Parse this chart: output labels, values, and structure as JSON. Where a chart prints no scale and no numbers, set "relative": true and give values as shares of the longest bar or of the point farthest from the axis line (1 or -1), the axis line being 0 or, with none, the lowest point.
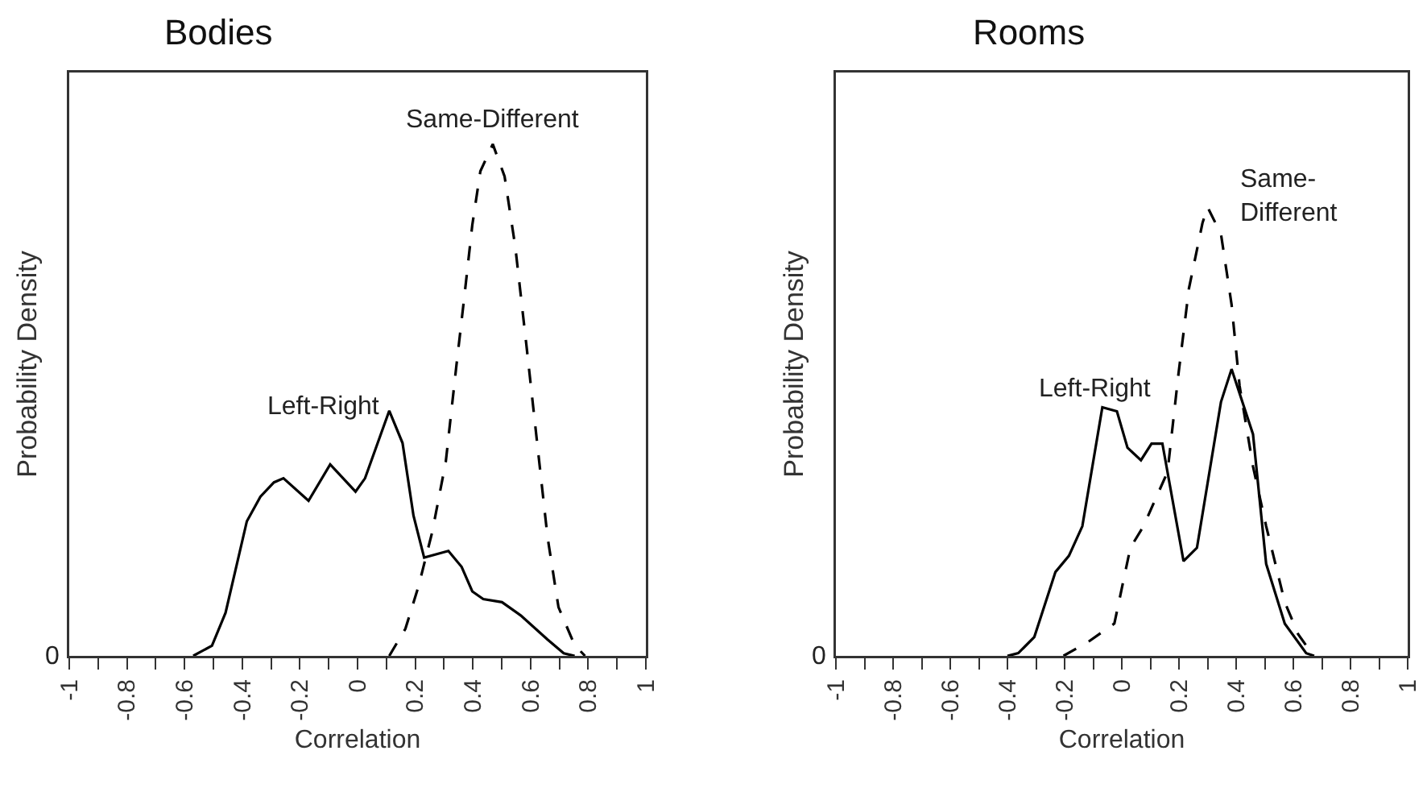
{
  "chart_data": [
    {
      "type": "line",
      "title": "Bodies",
      "xlabel": "Correlation",
      "ylabel": "Probability Density",
      "relative": true,
      "grid": false,
      "legend": false,
      "marker": "none",
      "xlim": [
        -1,
        1
      ],
      "xticks": [
        {
          "value": -1,
          "label": "-1"
        },
        {
          "value": -0.9,
          "label": null
        },
        {
          "value": -0.8,
          "label": "-0.8"
        },
        {
          "value": -0.7,
          "label": null
        },
        {
          "value": -0.6,
          "label": "-0.6"
        },
        {
          "value": -0.5,
          "label": null
        },
        {
          "value": -0.4,
          "label": "-0.4"
        },
        {
          "value": -0.3,
          "label": null
        },
        {
          "value": -0.2,
          "label": "-0.2"
        },
        {
          "value": -0.1,
          "label": null
        },
        {
          "value": 0,
          "label": "0"
        },
        {
          "value": 0.1,
          "label": null
        },
        {
          "value": 0.2,
          "label": "0.2"
        },
        {
          "value": 0.3,
          "label": null
        },
        {
          "value": 0.4,
          "label": "0.4"
        },
        {
          "value": 0.5,
          "label": null
        },
        {
          "value": 0.6,
          "label": "0.6"
        },
        {
          "value": 0.7,
          "label": null
        },
        {
          "value": 0.8,
          "label": "0.8"
        },
        {
          "value": 0.9,
          "label": null
        },
        {
          "value": 1,
          "label": "1"
        }
      ],
      "annotations": [
        "0"
      ],
      "series": [
        {
          "name": "Left-Right",
          "color": "#000000",
          "line_style": "solid",
          "x": [
            -0.57,
            -0.505,
            -0.458,
            -0.384,
            -0.337,
            -0.29,
            -0.257,
            -0.17,
            -0.095,
            -0.007,
            0.026,
            0.11,
            0.156,
            0.194,
            0.231,
            0.315,
            0.361,
            0.398,
            0.436,
            0.501,
            0.566,
            0.659,
            0.715,
            0.753
          ],
          "values": [
            0,
            0.02,
            0.084,
            0.263,
            0.311,
            0.339,
            0.347,
            0.303,
            0.374,
            0.321,
            0.347,
            0.479,
            0.416,
            0.274,
            0.192,
            0.205,
            0.174,
            0.126,
            0.111,
            0.105,
            0.079,
            0.032,
            0.005,
            0
          ]
        },
        {
          "name": "Same-Different",
          "color": "#000000",
          "line_style": "dashed",
          "x": [
            0.11,
            0.166,
            0.212,
            0.259,
            0.306,
            0.343,
            0.371,
            0.398,
            0.426,
            0.469,
            0.51,
            0.547,
            0.585,
            0.622,
            0.659,
            0.697,
            0.753,
            0.789
          ],
          "values": [
            0,
            0.053,
            0.137,
            0.242,
            0.379,
            0.568,
            0.705,
            0.842,
            0.947,
            1,
            0.937,
            0.8,
            0.611,
            0.421,
            0.232,
            0.095,
            0.021,
            0
          ]
        }
      ]
    },
    {
      "type": "line",
      "title": "Rooms",
      "xlabel": "Correlation",
      "ylabel": "Probability Density",
      "relative": true,
      "grid": false,
      "legend": false,
      "marker": "none",
      "xlim": [
        -1,
        1
      ],
      "xticks": [
        {
          "value": -1,
          "label": "-1"
        },
        {
          "value": -0.9,
          "label": null
        },
        {
          "value": -0.8,
          "label": "-0.8"
        },
        {
          "value": -0.7,
          "label": null
        },
        {
          "value": -0.6,
          "label": "-0.6"
        },
        {
          "value": -0.5,
          "label": null
        },
        {
          "value": -0.4,
          "label": "-0.4"
        },
        {
          "value": -0.3,
          "label": null
        },
        {
          "value": -0.2,
          "label": "-0.2"
        },
        {
          "value": -0.1,
          "label": null
        },
        {
          "value": 0,
          "label": "0"
        },
        {
          "value": 0.1,
          "label": null
        },
        {
          "value": 0.2,
          "label": "0.2"
        },
        {
          "value": 0.3,
          "label": null
        },
        {
          "value": 0.4,
          "label": "0.4"
        },
        {
          "value": 0.5,
          "label": null
        },
        {
          "value": 0.6,
          "label": "0.6"
        },
        {
          "value": 0.7,
          "label": null
        },
        {
          "value": 0.8,
          "label": "0.8"
        },
        {
          "value": 0.9,
          "label": null
        },
        {
          "value": 1,
          "label": "1"
        }
      ],
      "annotations": [
        "0"
      ],
      "series": [
        {
          "name": "Left-Right",
          "color": "#000000",
          "line_style": "solid",
          "x": [
            -0.4,
            -0.362,
            -0.306,
            -0.232,
            -0.185,
            -0.138,
            -0.068,
            -0.017,
            0.02,
            0.067,
            0.104,
            0.142,
            0.216,
            0.263,
            0.347,
            0.384,
            0.459,
            0.505,
            0.57,
            0.645,
            0.673
          ],
          "values": [
            0,
            0.006,
            0.042,
            0.187,
            0.223,
            0.289,
            0.554,
            0.545,
            0.464,
            0.436,
            0.473,
            0.473,
            0.211,
            0.241,
            0.566,
            0.639,
            0.494,
            0.205,
            0.072,
            0.006,
            0
          ]
        },
        {
          "name": "Same-Different",
          "color": "#000000",
          "line_style": "dashed",
          "x": [
            -0.204,
            -0.12,
            -0.026,
            0.03,
            0.076,
            0.16,
            0.198,
            0.235,
            0.282,
            0.3,
            0.347,
            0.384,
            0.412,
            0.459,
            0.505,
            0.57,
            0.617,
            0.664
          ],
          "values": [
            0,
            0.03,
            0.072,
            0.241,
            0.289,
            0.41,
            0.627,
            0.819,
            0.964,
            1,
            0.94,
            0.783,
            0.602,
            0.422,
            0.289,
            0.12,
            0.048,
            0.006
          ]
        }
      ]
    }
  ]
}
